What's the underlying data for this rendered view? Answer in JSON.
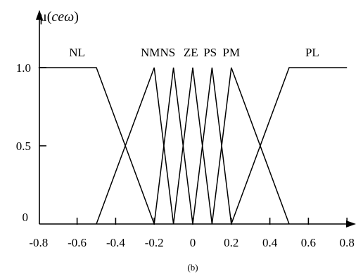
{
  "chart_data": {
    "type": "line",
    "ylabel": {
      "prefix": "μ(",
      "italic": "ceω",
      "suffix": ")"
    },
    "caption": "(b)",
    "xlim": [
      -0.8,
      0.85
    ],
    "ylim": [
      0,
      1.0
    ],
    "x_ticks": [
      -0.8,
      -0.6,
      -0.4,
      -0.2,
      0,
      0.2,
      0.4,
      0.6,
      0.8
    ],
    "x_tick_labels": [
      "-0.8",
      "-0.6",
      "-0.4",
      "-0.2",
      "0",
      "0.2",
      "0.4",
      "0.6",
      "0.8"
    ],
    "y_ticks": [
      0,
      0.5,
      1.0
    ],
    "y_tick_labels": [
      "0",
      "0.5",
      "1.0"
    ],
    "grid": false,
    "series": [
      {
        "name": "NL",
        "x": [
          -0.8,
          -0.5,
          -0.2
        ],
        "y": [
          1,
          1,
          0
        ]
      },
      {
        "name": "NM",
        "x": [
          -0.5,
          -0.2,
          -0.1
        ],
        "y": [
          0,
          1,
          0
        ]
      },
      {
        "name": "NS",
        "x": [
          -0.2,
          -0.1,
          0
        ],
        "y": [
          0,
          1,
          0
        ]
      },
      {
        "name": "ZE",
        "x": [
          -0.1,
          0,
          0.1
        ],
        "y": [
          0,
          1,
          0
        ]
      },
      {
        "name": "PS",
        "x": [
          0,
          0.1,
          0.2
        ],
        "y": [
          0,
          1,
          0
        ]
      },
      {
        "name": "PM",
        "x": [
          0.1,
          0.2,
          0.5
        ],
        "y": [
          0,
          1,
          0
        ]
      },
      {
        "name": "PL",
        "x": [
          0.2,
          0.5,
          0.8
        ],
        "y": [
          0,
          1,
          1
        ]
      }
    ],
    "series_labels": [
      {
        "text": "NL",
        "x": -0.6
      },
      {
        "text": "NM",
        "x": -0.22
      },
      {
        "text": "NS",
        "x": -0.13
      },
      {
        "text": "ZE",
        "x": -0.01
      },
      {
        "text": "PS",
        "x": 0.09
      },
      {
        "text": "PM",
        "x": 0.2
      },
      {
        "text": "PL",
        "x": 0.62
      }
    ]
  }
}
